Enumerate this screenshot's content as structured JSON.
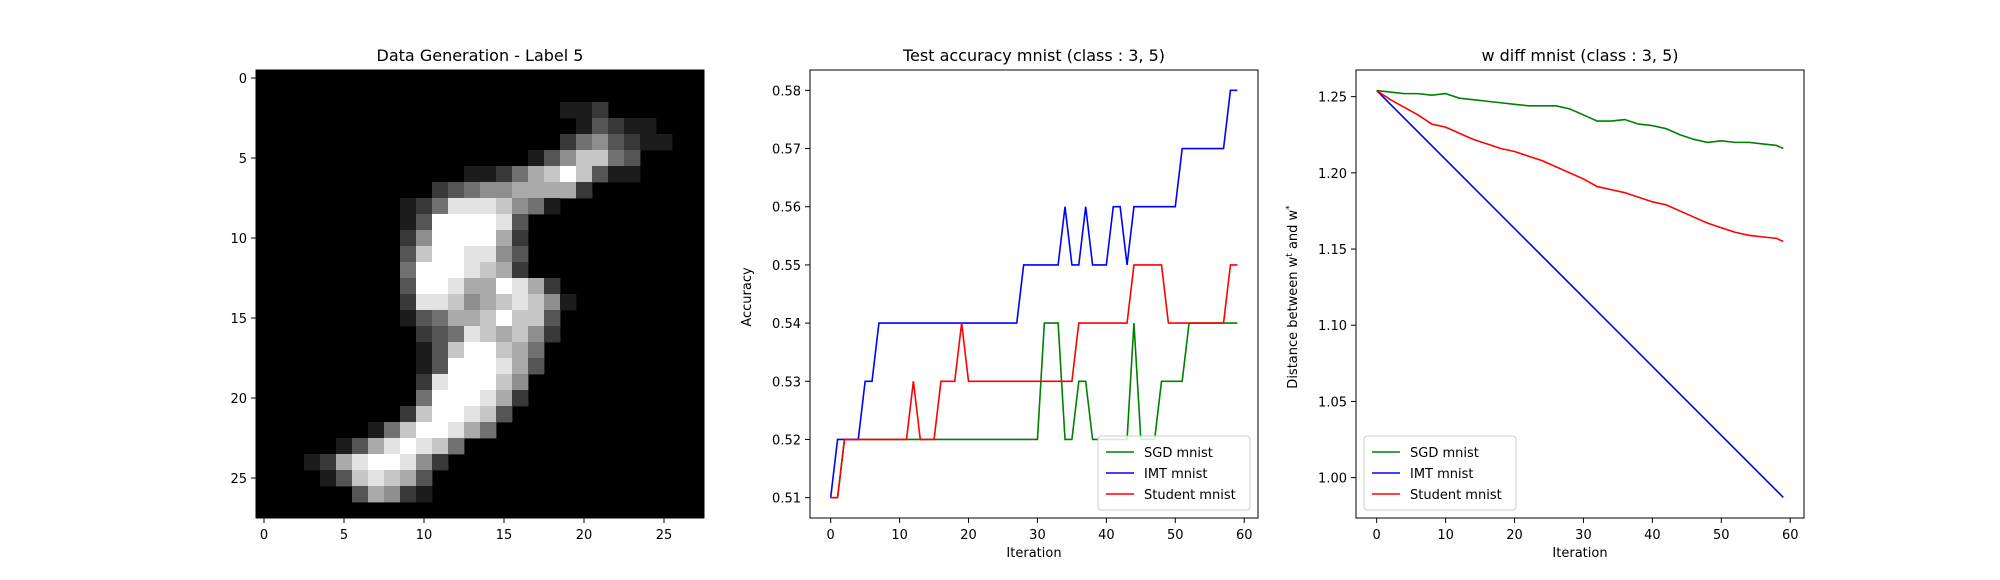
{
  "chart_data": [
    {
      "type": "heatmap",
      "title": "Data Generation - Label 5",
      "xlim": [
        -0.5,
        27.5
      ],
      "ylim": [
        27.5,
        -0.5
      ],
      "xticks": [
        0,
        5,
        10,
        15,
        20,
        25
      ],
      "yticks": [
        0,
        5,
        10,
        15,
        20,
        25
      ],
      "colormap": "gray",
      "rows": [
        "000000000000000000000000000",
        "0000000000000000000000000000",
        "0000000000000000000112000000",
        "0000000000000000000013211000",
        "0000000000000000000245321100",
        "0000000000000000013577430000",
        "0000000000000112467973110000",
        "0000000000023455666620000000",
        "0000000001248887541000000000",
        "0000000001399998300000000000",
        "0000000002599996200000000000",
        "0000000003799885300000000000",
        "0000000004999876200000000000",
        "0000000003998669862000000000",
        "0000000002887567875100000000",
        "0000000001346679773000000000",
        "0000000000234876752000000000",
        "0000000000137997640000000000",
        "0000000000139998630000000000",
        "0000000000289997500000000000",
        "0000000000499986200000000000",
        "0000000002799873000000000000",
        "0000000147998640000000000000",
        "0000013689874000000000000000",
        "0001268998520000000000000000",
        "0000137876300000000000000000",
        "0000003652100000000000000000",
        "0000000000000000000000000000"
      ]
    },
    {
      "type": "line",
      "title": "Test accuracy mnist (class : 3, 5)",
      "xlabel": "Iteration",
      "ylabel": "Accuracy",
      "xlim": [
        -3,
        62
      ],
      "ylim": [
        0.5065,
        0.5835
      ],
      "xticks": [
        0,
        10,
        20,
        30,
        40,
        50,
        60
      ],
      "yticks": [
        0.51,
        0.52,
        0.53,
        0.54,
        0.55,
        0.56,
        0.57,
        0.58
      ],
      "legend_position": "lower-right",
      "series": [
        {
          "name": "SGD mnist",
          "color": "#008000",
          "x": [
            0,
            1,
            2,
            3,
            4,
            5,
            6,
            7,
            8,
            9,
            10,
            11,
            12,
            13,
            14,
            15,
            16,
            17,
            18,
            19,
            20,
            21,
            22,
            23,
            24,
            25,
            26,
            27,
            28,
            29,
            30,
            31,
            32,
            33,
            34,
            35,
            36,
            37,
            38,
            39,
            40,
            41,
            42,
            43,
            44,
            45,
            46,
            47,
            48,
            49,
            50,
            51,
            52,
            53,
            54,
            55,
            56,
            57,
            58,
            59
          ],
          "y": [
            0.51,
            0.51,
            0.52,
            0.52,
            0.52,
            0.52,
            0.52,
            0.52,
            0.52,
            0.52,
            0.52,
            0.52,
            0.52,
            0.52,
            0.52,
            0.52,
            0.52,
            0.52,
            0.52,
            0.52,
            0.52,
            0.52,
            0.52,
            0.52,
            0.52,
            0.52,
            0.52,
            0.52,
            0.52,
            0.52,
            0.52,
            0.54,
            0.54,
            0.54,
            0.52,
            0.52,
            0.53,
            0.53,
            0.52,
            0.52,
            0.52,
            0.52,
            0.52,
            0.52,
            0.54,
            0.52,
            0.52,
            0.52,
            0.53,
            0.53,
            0.53,
            0.53,
            0.54,
            0.54,
            0.54,
            0.54,
            0.54,
            0.54,
            0.54,
            0.54
          ]
        },
        {
          "name": "IMT mnist",
          "color": "#0000ff",
          "x": [
            0,
            1,
            2,
            3,
            4,
            5,
            6,
            7,
            8,
            9,
            10,
            11,
            12,
            13,
            14,
            15,
            16,
            17,
            18,
            19,
            20,
            21,
            22,
            23,
            24,
            25,
            26,
            27,
            28,
            29,
            30,
            31,
            32,
            33,
            34,
            35,
            36,
            37,
            38,
            39,
            40,
            41,
            42,
            43,
            44,
            45,
            46,
            47,
            48,
            49,
            50,
            51,
            52,
            53,
            54,
            55,
            56,
            57,
            58,
            59
          ],
          "y": [
            0.51,
            0.52,
            0.52,
            0.52,
            0.52,
            0.53,
            0.53,
            0.54,
            0.54,
            0.54,
            0.54,
            0.54,
            0.54,
            0.54,
            0.54,
            0.54,
            0.54,
            0.54,
            0.54,
            0.54,
            0.54,
            0.54,
            0.54,
            0.54,
            0.54,
            0.54,
            0.54,
            0.54,
            0.55,
            0.55,
            0.55,
            0.55,
            0.55,
            0.55,
            0.56,
            0.55,
            0.55,
            0.56,
            0.55,
            0.55,
            0.55,
            0.56,
            0.56,
            0.55,
            0.56,
            0.56,
            0.56,
            0.56,
            0.56,
            0.56,
            0.56,
            0.57,
            0.57,
            0.57,
            0.57,
            0.57,
            0.57,
            0.57,
            0.58,
            0.58
          ]
        },
        {
          "name": "Student mnist",
          "color": "#ff0000",
          "x": [
            0,
            1,
            2,
            3,
            4,
            5,
            6,
            7,
            8,
            9,
            10,
            11,
            12,
            13,
            14,
            15,
            16,
            17,
            18,
            19,
            20,
            21,
            22,
            23,
            24,
            25,
            26,
            27,
            28,
            29,
            30,
            31,
            32,
            33,
            34,
            35,
            36,
            37,
            38,
            39,
            40,
            41,
            42,
            43,
            44,
            45,
            46,
            47,
            48,
            49,
            50,
            51,
            52,
            53,
            54,
            55,
            56,
            57,
            58,
            59
          ],
          "y": [
            0.51,
            0.51,
            0.52,
            0.52,
            0.52,
            0.52,
            0.52,
            0.52,
            0.52,
            0.52,
            0.52,
            0.52,
            0.53,
            0.52,
            0.52,
            0.52,
            0.53,
            0.53,
            0.53,
            0.54,
            0.53,
            0.53,
            0.53,
            0.53,
            0.53,
            0.53,
            0.53,
            0.53,
            0.53,
            0.53,
            0.53,
            0.53,
            0.53,
            0.53,
            0.53,
            0.53,
            0.54,
            0.54,
            0.54,
            0.54,
            0.54,
            0.54,
            0.54,
            0.54,
            0.55,
            0.55,
            0.55,
            0.55,
            0.55,
            0.54,
            0.54,
            0.54,
            0.54,
            0.54,
            0.54,
            0.54,
            0.54,
            0.54,
            0.55,
            0.55
          ]
        }
      ]
    },
    {
      "type": "line",
      "title": "w diff mnist (class : 3, 5)",
      "xlabel": "Iteration",
      "ylabel": "Distance between w^t and w^*",
      "xlim": [
        -3,
        62
      ],
      "ylim": [
        0.9735,
        1.2675
      ],
      "xticks": [
        0,
        10,
        20,
        30,
        40,
        50,
        60
      ],
      "yticks": [
        1.0,
        1.05,
        1.1,
        1.15,
        1.2,
        1.25
      ],
      "yticklabels": [
        "1.00",
        "1.05",
        "1.10",
        "1.15",
        "1.20",
        "1.25"
      ],
      "legend_position": "lower-left",
      "series": [
        {
          "name": "SGD mnist",
          "color": "#008000",
          "x": [
            0,
            2,
            4,
            6,
            8,
            10,
            12,
            14,
            16,
            18,
            20,
            22,
            24,
            26,
            28,
            30,
            32,
            34,
            36,
            38,
            40,
            42,
            44,
            46,
            48,
            50,
            52,
            54,
            56,
            58,
            59
          ],
          "y": [
            1.254,
            1.253,
            1.252,
            1.252,
            1.251,
            1.252,
            1.249,
            1.248,
            1.247,
            1.246,
            1.245,
            1.244,
            1.244,
            1.244,
            1.242,
            1.238,
            1.234,
            1.234,
            1.235,
            1.232,
            1.231,
            1.229,
            1.225,
            1.222,
            1.22,
            1.221,
            1.22,
            1.22,
            1.219,
            1.218,
            1.216
          ]
        },
        {
          "name": "IMT mnist",
          "color": "#0000ff",
          "x": [
            0,
            59
          ],
          "y": [
            1.254,
            0.987
          ]
        },
        {
          "name": "Student mnist",
          "color": "#ff0000",
          "x": [
            0,
            2,
            4,
            6,
            8,
            10,
            12,
            14,
            16,
            18,
            20,
            22,
            24,
            26,
            28,
            30,
            32,
            34,
            36,
            38,
            40,
            42,
            44,
            46,
            48,
            50,
            52,
            54,
            56,
            58,
            59
          ],
          "y": [
            1.254,
            1.248,
            1.243,
            1.238,
            1.232,
            1.23,
            1.226,
            1.222,
            1.219,
            1.216,
            1.214,
            1.211,
            1.208,
            1.204,
            1.2,
            1.196,
            1.191,
            1.189,
            1.187,
            1.184,
            1.181,
            1.179,
            1.175,
            1.171,
            1.167,
            1.164,
            1.161,
            1.159,
            1.158,
            1.157,
            1.155
          ]
        }
      ]
    }
  ]
}
